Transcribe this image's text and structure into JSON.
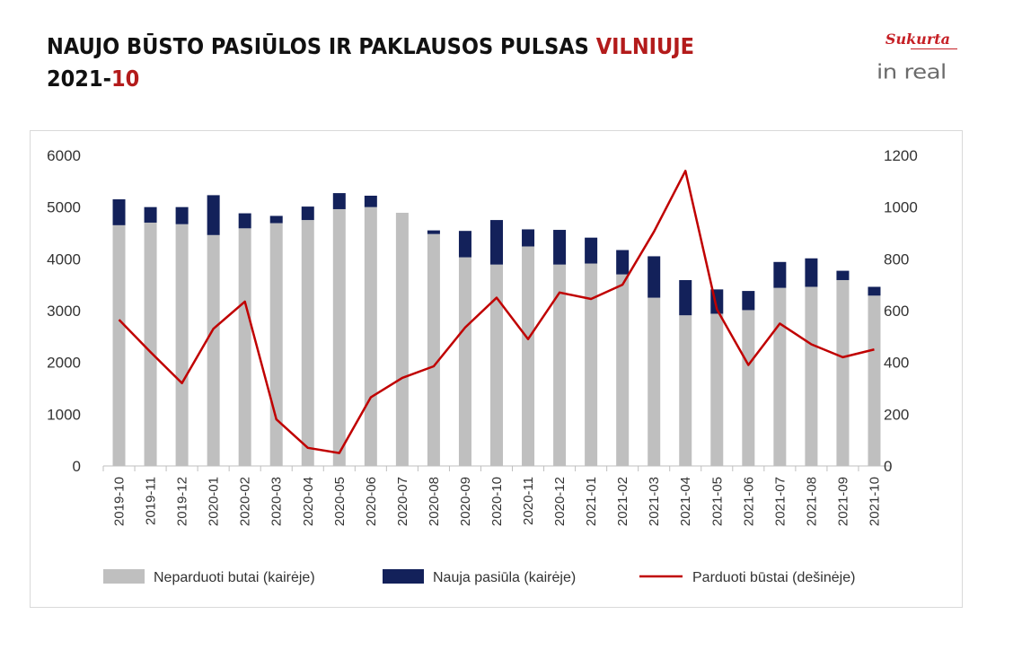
{
  "header": {
    "title_main": "NAUJO BŪSTO PASIŪLOS IR PAKLAUSOS PULSAS ",
    "title_accent": "VILNIUJE",
    "subtitle_main": "2021-",
    "subtitle_accent": "10"
  },
  "logo": {
    "sukurta": "Sukurta",
    "brand": "in real"
  },
  "colors": {
    "unsold": "#bfbfbf",
    "new_supply": "#13215a",
    "sold_line": "#c00000",
    "accent_text": "#b31b1b"
  },
  "chart_data": {
    "type": "bar",
    "stacked": true,
    "categories": [
      "2019-10",
      "2019-11",
      "2019-12",
      "2020-01",
      "2020-02",
      "2020-03",
      "2020-04",
      "2020-05",
      "2020-06",
      "2020-07",
      "2020-08",
      "2020-09",
      "2020-10",
      "2020-11",
      "2020-12",
      "2021-01",
      "2021-02",
      "2021-03",
      "2021-04",
      "2021-05",
      "2021-06",
      "2021-07",
      "2021-08",
      "2021-09",
      "2021-10"
    ],
    "series": [
      {
        "name": "Neparduoti butai (kairėje)",
        "type": "bar",
        "axis": "left",
        "values": [
          4650,
          4700,
          4670,
          4460,
          4590,
          4690,
          4750,
          4960,
          5000,
          4890,
          4480,
          4030,
          3890,
          4240,
          3890,
          3910,
          3700,
          3250,
          2910,
          2940,
          3010,
          3440,
          3460,
          3590,
          3290
        ]
      },
      {
        "name": "Nauja pasiūla (kairėje)",
        "type": "bar",
        "axis": "left",
        "values": [
          500,
          300,
          330,
          770,
          290,
          140,
          260,
          310,
          220,
          0,
          70,
          510,
          860,
          330,
          670,
          500,
          470,
          800,
          680,
          470,
          370,
          500,
          550,
          180,
          170
        ]
      },
      {
        "name": "Parduoti būstai (dešinėje)",
        "type": "line",
        "axis": "right",
        "values": [
          565,
          440,
          320,
          530,
          635,
          180,
          70,
          50,
          265,
          340,
          385,
          535,
          650,
          490,
          670,
          645,
          700,
          905,
          1140,
          605,
          390,
          550,
          470,
          420,
          450
        ]
      }
    ],
    "y_left": {
      "min": 0,
      "max": 6000,
      "ticks": [
        "0",
        "1000",
        "2000",
        "3000",
        "4000",
        "5000",
        "6000"
      ]
    },
    "y_right": {
      "min": 0,
      "max": 1200,
      "ticks": [
        "0",
        "200",
        "400",
        "600",
        "800",
        "1000",
        "1200"
      ]
    },
    "grid": false,
    "legend_position": "bottom"
  }
}
